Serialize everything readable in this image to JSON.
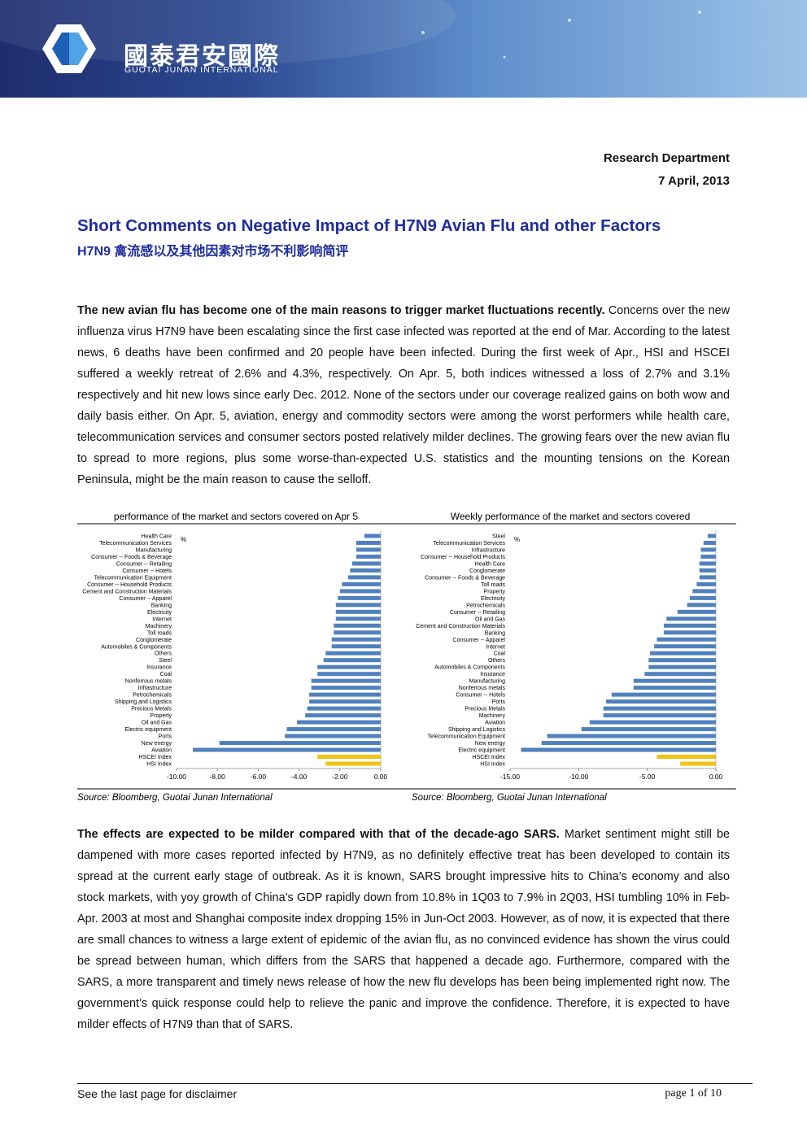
{
  "header": {
    "company_cn": "國泰君安國際",
    "company_en": "GUOTAI JUNAN INTERNATIONAL"
  },
  "department": "Research Department",
  "date": "7 April, 2013",
  "title": "Short Comments on Negative Impact of H7N9 Avian Flu and other Factors",
  "subtitle": "H7N9 禽流感以及其他因素对市场不利影响简评",
  "paragraphs": [
    {
      "lead": "The new avian flu has become one of the main reasons to trigger market fluctuations recently.",
      "text": " Concerns over the new influenza virus H7N9 have been escalating since the first case infected was reported at the end of Mar. According to the latest news, 6 deaths have been confirmed and 20 people have been infected. During the first week of Apr., HSI and HSCEI suffered a weekly retreat of 2.6% and 4.3%, respectively. On Apr. 5, both indices witnessed a loss of 2.7% and 3.1% respectively and hit new lows since early Dec. 2012. None of the sectors under our coverage realized gains on both wow and daily basis either. On Apr. 5, aviation, energy and commodity sectors were among the worst performers while health care, telecommunication services and consumer sectors posted relatively milder declines. The growing fears over the new avian flu to spread to more regions, plus some worse-than-expected U.S. statistics and the mounting tensions on the Korean Peninsula, might be the main reason to cause the selloff."
    },
    {
      "lead": "The effects are expected to be milder compared with that of the decade-ago SARS.",
      "text": " Market sentiment might still be dampened with more cases reported infected by H7N9, as no definitely effective treat has been developed to contain its spread at the current early stage of outbreak. As it is known, SARS brought impressive hits to China’s economy and also stock markets, with yoy growth of China’s GDP rapidly down from 10.8% in 1Q03 to 7.9% in 2Q03, HSI tumbling 10% in Feb-Apr. 2003 at most and Shanghai composite index dropping 15% in Jun-Oct 2003. However, as of now, it is expected that there are small chances to witness a large extent of epidemic of the avian flu, as no convinced evidence has shown the virus could be spread between human, which differs from the SARS that happened a decade ago. Furthermore, compared with the SARS, a more transparent and timely news release of how the new flu develops has been being implemented right now. The government’s quick response could help to relieve the panic and improve the confidence. Therefore, it is expected to have milder effects of H7N9 than that of SARS."
    }
  ],
  "chart_data": [
    {
      "type": "bar",
      "orientation": "horizontal",
      "title": "performance of the market and sectors covered on Apr 5",
      "unit": "%",
      "source": "Source: Bloomberg, Guotai Junan International",
      "categories": [
        "Health Care",
        "Telecommunication Services",
        "Manufacturing",
        "Consumer -- Foods & Beverage",
        "Consumer -- Retailing",
        "Consumer -- Hotels",
        "Telecommunication Equipment",
        "Consumer -- Household Products",
        "Cement and Construction Materials",
        "Consumer -- Apparel",
        "Banking",
        "Electricity",
        "Internet",
        "Machinery",
        "Toll roads",
        "Conglomerate",
        "Automobiles & Components",
        "Others",
        "Steel",
        "Insurance",
        "Coal",
        "Nonferrous metals",
        "Infrastructure",
        "Petrochemicals",
        "Shipping and Logistics",
        "Precious Metals",
        "Property",
        "Oil and Gas",
        "Electric equipment",
        "Ports",
        "New energy",
        "Aviation",
        "HSCEI Index",
        "HSI Index"
      ],
      "values": [
        -0.8,
        -1.2,
        -1.2,
        -1.2,
        -1.4,
        -1.5,
        -1.6,
        -1.9,
        -2.0,
        -2.1,
        -2.2,
        -2.2,
        -2.2,
        -2.3,
        -2.3,
        -2.4,
        -2.4,
        -2.7,
        -2.8,
        -3.1,
        -3.1,
        -3.4,
        -3.4,
        -3.5,
        -3.5,
        -3.6,
        -3.7,
        -4.1,
        -4.6,
        -4.7,
        -7.9,
        -9.2,
        -3.1,
        -2.7
      ],
      "colors": [
        "#4f81bd",
        "#4f81bd",
        "#4f81bd",
        "#4f81bd",
        "#4f81bd",
        "#4f81bd",
        "#4f81bd",
        "#4f81bd",
        "#4f81bd",
        "#4f81bd",
        "#4f81bd",
        "#4f81bd",
        "#4f81bd",
        "#4f81bd",
        "#4f81bd",
        "#4f81bd",
        "#4f81bd",
        "#4f81bd",
        "#4f81bd",
        "#4f81bd",
        "#4f81bd",
        "#4f81bd",
        "#4f81bd",
        "#4f81bd",
        "#4f81bd",
        "#4f81bd",
        "#4f81bd",
        "#4f81bd",
        "#4f81bd",
        "#4f81bd",
        "#4f81bd",
        "#4f81bd",
        "#f2c314",
        "#f2c314"
      ],
      "xlim": [
        -10,
        0
      ],
      "xticks": [
        {
          "value": -10,
          "label": "-10.00"
        },
        {
          "value": -8,
          "label": "-8.00"
        },
        {
          "value": -6,
          "label": "-6.00"
        },
        {
          "value": -4,
          "label": "-4.00"
        },
        {
          "value": -2,
          "label": "-2.00"
        },
        {
          "value": 0,
          "label": "0.00"
        }
      ]
    },
    {
      "type": "bar",
      "orientation": "horizontal",
      "title": "Weekly performance of the market and sectors covered",
      "unit": "%",
      "source": "Source: Bloomberg, Guotai Junan International",
      "categories": [
        "Steel",
        "Telecommunication Services",
        "Infrastructure",
        "Consumer -- Household Products",
        "Health Care",
        "Conglomerate",
        "Consumer -- Foods & Beverage",
        "Toll roads",
        "Property",
        "Electricity",
        "Petrochemicals",
        "Consumer -- Retailing",
        "Oil and Gas",
        "Cement and Construction Materials",
        "Banking",
        "Consumer -- Apparel",
        "Internet",
        "Coal",
        "Others",
        "Automobiles & Components",
        "Insurance",
        "Manufacturing",
        "Nonferrous metals",
        "Consumer -- Hotels",
        "Ports",
        "Precious Metals",
        "Machinery",
        "Aviation",
        "Shipping and Logistics",
        "Telecommunication Equipment",
        "New energy",
        "Electric equipment",
        "HSCEI Index",
        "HSI Index"
      ],
      "values": [
        -0.6,
        -0.9,
        -1.1,
        -1.1,
        -1.2,
        -1.2,
        -1.2,
        -1.4,
        -1.7,
        -1.9,
        -2.1,
        -2.8,
        -3.6,
        -3.8,
        -3.8,
        -4.3,
        -4.5,
        -4.8,
        -4.9,
        -4.9,
        -5.2,
        -6.0,
        -6.0,
        -7.6,
        -8.0,
        -8.2,
        -8.2,
        -9.2,
        -9.8,
        -12.3,
        -12.7,
        -14.2,
        -4.3,
        -2.6
      ],
      "colors": [
        "#4f81bd",
        "#4f81bd",
        "#4f81bd",
        "#4f81bd",
        "#4f81bd",
        "#4f81bd",
        "#4f81bd",
        "#4f81bd",
        "#4f81bd",
        "#4f81bd",
        "#4f81bd",
        "#4f81bd",
        "#4f81bd",
        "#4f81bd",
        "#4f81bd",
        "#4f81bd",
        "#4f81bd",
        "#4f81bd",
        "#4f81bd",
        "#4f81bd",
        "#4f81bd",
        "#4f81bd",
        "#4f81bd",
        "#4f81bd",
        "#4f81bd",
        "#4f81bd",
        "#4f81bd",
        "#4f81bd",
        "#4f81bd",
        "#4f81bd",
        "#4f81bd",
        "#4f81bd",
        "#f2c314",
        "#f2c314"
      ],
      "xlim": [
        -15,
        0
      ],
      "xticks": [
        {
          "value": -15,
          "label": "-15.00"
        },
        {
          "value": -10,
          "label": "-10.00"
        },
        {
          "value": -5,
          "label": "-5.00"
        },
        {
          "value": 0,
          "label": "0.00"
        }
      ]
    }
  ],
  "footer": {
    "disclaimer": "See the last page for disclaimer",
    "page": "page 1 of 10"
  }
}
